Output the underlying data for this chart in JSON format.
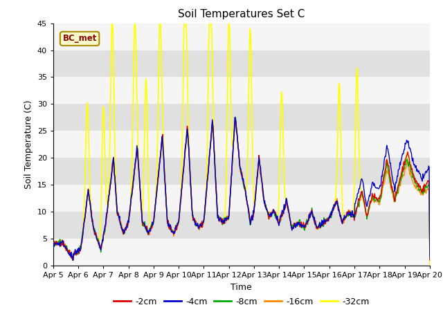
{
  "title": "Soil Temperatures Set C",
  "xlabel": "Time",
  "ylabel": "Soil Temperature (C)",
  "ylim": [
    0,
    45
  ],
  "xlim": [
    0,
    15
  ],
  "x_tick_labels": [
    "Apr 5",
    "Apr 6",
    "Apr 7",
    "Apr 8",
    "Apr 9",
    "Apr 10",
    "Apr 11",
    "Apr 12",
    "Apr 13",
    "Apr 14",
    "Apr 15",
    "Apr 16",
    "Apr 17",
    "Apr 18",
    "Apr 19",
    "Apr 20"
  ],
  "yticks": [
    0,
    5,
    10,
    15,
    20,
    25,
    30,
    35,
    40,
    45
  ],
  "series_labels": [
    "-2cm",
    "-4cm",
    "-8cm",
    "-16cm",
    "-32cm"
  ],
  "series_colors": [
    "#dd0000",
    "#0000cc",
    "#00aa00",
    "#ff8800",
    "#ffff00"
  ],
  "series_linewidths": [
    1.0,
    1.0,
    1.0,
    1.0,
    1.2
  ],
  "bc_met_label": "BC_met",
  "bc_met_text_color": "#8b0000",
  "bc_met_bg_color": "#ffffcc",
  "bc_met_edge_color": "#aa8800",
  "fig_bg_color": "#ffffff",
  "plot_bg_color": "#e8e8e8",
  "band_white_color": "#f5f5f5",
  "band_gray_color": "#e0e0e0",
  "title_fontsize": 11,
  "label_fontsize": 9,
  "tick_fontsize": 8,
  "legend_fontsize": 9,
  "n_points": 720,
  "total_days": 15,
  "random_seed": 42
}
